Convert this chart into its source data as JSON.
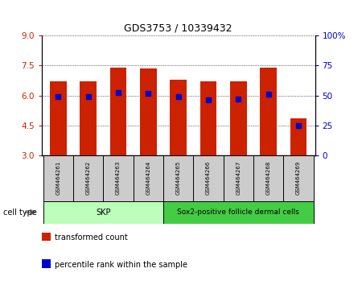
{
  "title": "GDS3753 / 10339432",
  "samples": [
    "GSM464261",
    "GSM464262",
    "GSM464263",
    "GSM464264",
    "GSM464265",
    "GSM464266",
    "GSM464267",
    "GSM464268",
    "GSM464269"
  ],
  "bar_tops": [
    6.7,
    6.7,
    7.4,
    7.35,
    6.8,
    6.7,
    6.7,
    7.4,
    4.85
  ],
  "bar_bottoms": [
    3.0,
    3.0,
    3.0,
    3.0,
    3.0,
    3.0,
    3.0,
    3.0,
    3.0
  ],
  "percentile_values": [
    5.95,
    5.93,
    6.13,
    6.12,
    5.95,
    5.78,
    5.83,
    6.05,
    4.5
  ],
  "bar_color": "#cc2200",
  "percentile_color": "#0000cc",
  "ylim": [
    3.0,
    9.0
  ],
  "yticks_left": [
    3,
    4.5,
    6,
    7.5,
    9
  ],
  "yticks_right": [
    0,
    25,
    50,
    75,
    100
  ],
  "ylabel_left_color": "#cc2200",
  "ylabel_right_color": "#0000cc",
  "grid_color": "#000000",
  "skp_color": "#bbffbb",
  "sox2_color": "#44cc44",
  "cell_type_label": "cell type",
  "legend_items": [
    {
      "label": "transformed count",
      "color": "#cc2200"
    },
    {
      "label": "percentile rank within the sample",
      "color": "#0000cc"
    }
  ],
  "background_color": "#ffffff",
  "plot_bg_color": "#ffffff",
  "tick_label_bg": "#cccccc",
  "skp_range": [
    0,
    3
  ],
  "sox2_range": [
    4,
    8
  ]
}
